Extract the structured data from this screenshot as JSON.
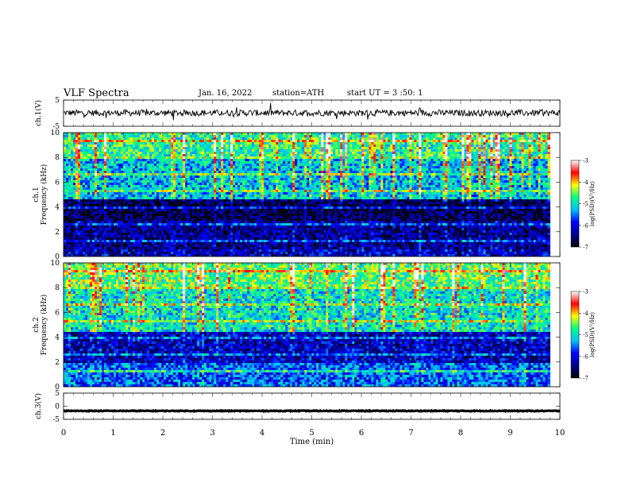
{
  "header": {
    "title": "VLF  Spectra",
    "date": "Jan. 16, 2022",
    "station": "station=ATH",
    "start": "start  UT  =   3  :50: 1"
  },
  "colorbar": {
    "label": "log(PSD)(V²/Hz)",
    "ticks": [
      -3,
      -4,
      -5,
      -6,
      -7
    ],
    "range": [
      -7,
      -3
    ],
    "colors": [
      "#000000",
      "#00008b",
      "#0000ff",
      "#00bfff",
      "#00ff80",
      "#ffff00",
      "#ff0000",
      "#ffffff"
    ]
  },
  "chart_data": [
    {
      "type": "line",
      "panel": "ch1-waveform",
      "ylabel": "ch.1(V)",
      "ylim": [
        -5,
        5
      ],
      "yticks": [
        "5",
        "-5"
      ],
      "xlim": [
        0,
        10
      ],
      "trace_level": 0.1,
      "trace_amplitude": 1.2
    },
    {
      "type": "heatmap",
      "panel": "ch1-spectrogram",
      "ylabel": "ch.1\nFrequency  (kHz)",
      "ylabel_lines": [
        "ch.1",
        "Frequency  (kHz)"
      ],
      "ylim": [
        0,
        10
      ],
      "yticks": [
        "10",
        "8",
        "6",
        "4",
        "2",
        "0"
      ],
      "xlim": [
        0,
        9.8
      ],
      "value_unit": "log(PSD)(V²/Hz)",
      "bands": [
        {
          "from": 0,
          "to": 0.5,
          "level": -6.2
        },
        {
          "from": 0.5,
          "to": 2.8,
          "level": -6.4
        },
        {
          "from": 2.8,
          "to": 4.6,
          "level": -6.7
        },
        {
          "from": 4.6,
          "to": 8.0,
          "level": -5.2
        },
        {
          "from": 8.0,
          "to": 10,
          "level": -4.8
        }
      ]
    },
    {
      "type": "heatmap",
      "panel": "ch2-spectrogram",
      "ylabel": "ch.2\nFrequency  (kHz)",
      "ylabel_lines": [
        "ch.2",
        "Frequency  (kHz)"
      ],
      "ylim": [
        0,
        10
      ],
      "yticks": [
        "10",
        "8",
        "6",
        "4",
        "2",
        "0"
      ],
      "xlim": [
        0,
        9.8
      ],
      "value_unit": "log(PSD)(V²/Hz)",
      "bands": [
        {
          "from": 0,
          "to": 2.0,
          "level": -5.6
        },
        {
          "from": 2.0,
          "to": 4.4,
          "level": -6.2
        },
        {
          "from": 4.4,
          "to": 8.0,
          "level": -5.0
        },
        {
          "from": 8.0,
          "to": 10,
          "level": -4.6
        }
      ]
    },
    {
      "type": "line",
      "panel": "ch3-waveform",
      "ylabel": "ch.3(V)",
      "ylim": [
        -5,
        5
      ],
      "yticks": [
        "5",
        "0",
        "-5"
      ],
      "xlim": [
        0,
        10
      ],
      "trace_level": -1.8,
      "trace_amplitude": 0.15
    }
  ],
  "xaxis": {
    "label": "Time  (min)",
    "ticks": [
      "0",
      "1",
      "2",
      "3",
      "4",
      "5",
      "6",
      "7",
      "8",
      "9",
      "10"
    ],
    "range": [
      0,
      10
    ]
  }
}
